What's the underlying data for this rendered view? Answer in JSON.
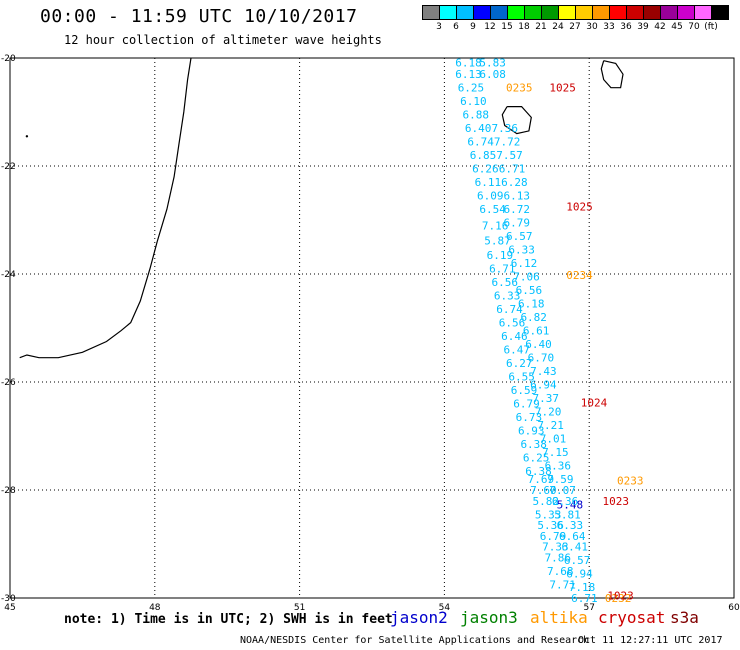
{
  "header": {
    "title": "00:00 - 11:59 UTC 10/10/2017",
    "subtitle": "12 hour collection of altimeter wave heights"
  },
  "colorbar": {
    "colors": [
      "#808080",
      "#00ffff",
      "#00bfff",
      "#0000ff",
      "#0066cc",
      "#00ff00",
      "#00cc00",
      "#009900",
      "#ffff00",
      "#ffcc00",
      "#ff9900",
      "#ff0000",
      "#cc0000",
      "#990000",
      "#990099",
      "#cc00cc",
      "#ff66ff",
      "#000000"
    ],
    "labels": [
      "3",
      "6",
      "9",
      "12",
      "15",
      "18",
      "21",
      "24",
      "27",
      "30",
      "33",
      "36",
      "39",
      "42",
      "45",
      "70"
    ],
    "unit": "(ft)"
  },
  "axes": {
    "lat_labels": [
      "-20",
      "-22",
      "-24",
      "-26",
      "-28",
      "-30"
    ],
    "lon_labels": [
      "45",
      "48",
      "51",
      "54",
      "57",
      "60"
    ],
    "lat_range": [
      -20,
      -30
    ],
    "lon_range": [
      45,
      60
    ],
    "grid": "dotted"
  },
  "coastlines": {
    "madagascar": [
      [
        48.75,
        -20.0
      ],
      [
        48.68,
        -20.4
      ],
      [
        48.6,
        -21.0
      ],
      [
        48.5,
        -21.6
      ],
      [
        48.4,
        -22.2
      ],
      [
        48.25,
        -22.8
      ],
      [
        48.05,
        -23.4
      ],
      [
        47.9,
        -23.9
      ],
      [
        47.7,
        -24.5
      ],
      [
        47.5,
        -24.9
      ],
      [
        47.3,
        -25.05
      ],
      [
        47.0,
        -25.25
      ],
      [
        46.5,
        -25.45
      ],
      [
        46.0,
        -25.55
      ],
      [
        45.6,
        -25.55
      ],
      [
        45.35,
        -25.5
      ],
      [
        45.2,
        -25.55
      ]
    ],
    "mauritius": [
      [
        57.3,
        -20.05
      ],
      [
        57.55,
        -20.1
      ],
      [
        57.7,
        -20.3
      ],
      [
        57.65,
        -20.55
      ],
      [
        57.45,
        -20.55
      ],
      [
        57.3,
        -20.4
      ],
      [
        57.25,
        -20.2
      ],
      [
        57.3,
        -20.05
      ]
    ],
    "reunion": [
      [
        55.3,
        -20.9
      ],
      [
        55.6,
        -20.9
      ],
      [
        55.8,
        -21.1
      ],
      [
        55.75,
        -21.35
      ],
      [
        55.5,
        -21.4
      ],
      [
        55.25,
        -21.25
      ],
      [
        55.2,
        -21.05
      ],
      [
        55.3,
        -20.9
      ]
    ]
  },
  "chart_data": {
    "type": "scatter",
    "title": "12 hour collection of altimeter wave heights",
    "unit": "ft",
    "series": [
      {
        "name": "jason2",
        "color": "#0000cc",
        "points": [
          {
            "lon": 56.6,
            "lat": -28.27,
            "label": "5.48"
          }
        ]
      },
      {
        "name": "jason3",
        "color": "#008000",
        "points": []
      },
      {
        "name": "altika",
        "color": "#ff9900",
        "points": [
          {
            "lon": 55.55,
            "lat": -20.55,
            "label": "0235"
          },
          {
            "lon": 56.8,
            "lat": -24.02,
            "label": "0234"
          },
          {
            "lon": 57.85,
            "lat": -27.82,
            "label": "0233"
          },
          {
            "lon": 57.6,
            "lat": -30.0,
            "label": "0232"
          }
        ]
      },
      {
        "name": "cryosat",
        "color": "#cc0000",
        "points": [
          {
            "lon": 56.45,
            "lat": -20.55,
            "label": "1025"
          },
          {
            "lon": 56.8,
            "lat": -22.75,
            "label": "1025"
          },
          {
            "lon": 57.1,
            "lat": -26.38,
            "label": "1024"
          },
          {
            "lon": 57.55,
            "lat": -28.2,
            "label": "1023"
          },
          {
            "lon": 57.65,
            "lat": -29.95,
            "label": "1023"
          }
        ]
      },
      {
        "name": "s3a",
        "color": "#800000",
        "points": []
      },
      {
        "name": "swh",
        "color": "#00bfff",
        "points": [
          {
            "lon": 54.5,
            "lat": -20.08,
            "label": "6.18"
          },
          {
            "lon": 55.0,
            "lat": -20.08,
            "label": "5.83"
          },
          {
            "lon": 54.5,
            "lat": -20.3,
            "label": "6.13"
          },
          {
            "lon": 55.0,
            "lat": -20.3,
            "label": "6.08"
          },
          {
            "lon": 54.55,
            "lat": -20.55,
            "label": "6.25"
          },
          {
            "lon": 54.6,
            "lat": -20.8,
            "label": "6.10"
          },
          {
            "lon": 54.65,
            "lat": -21.05,
            "label": "6.88"
          },
          {
            "lon": 54.7,
            "lat": -21.3,
            "label": "6.40"
          },
          {
            "lon": 55.25,
            "lat": -21.3,
            "label": "7.36"
          },
          {
            "lon": 54.75,
            "lat": -21.55,
            "label": "6.74"
          },
          {
            "lon": 55.3,
            "lat": -21.55,
            "label": "7.72"
          },
          {
            "lon": 54.8,
            "lat": -21.8,
            "label": "6.85"
          },
          {
            "lon": 55.35,
            "lat": -21.8,
            "label": "7.57"
          },
          {
            "lon": 54.85,
            "lat": -22.05,
            "label": "6.26"
          },
          {
            "lon": 55.4,
            "lat": -22.05,
            "label": "6.71"
          },
          {
            "lon": 54.9,
            "lat": -22.3,
            "label": "6.11"
          },
          {
            "lon": 55.45,
            "lat": -22.3,
            "label": "6.28"
          },
          {
            "lon": 54.95,
            "lat": -22.55,
            "label": "6.09"
          },
          {
            "lon": 55.5,
            "lat": -22.55,
            "label": "6.13"
          },
          {
            "lon": 55.0,
            "lat": -22.8,
            "label": "6.54"
          },
          {
            "lon": 55.5,
            "lat": -22.8,
            "label": "6.72"
          },
          {
            "lon": 55.5,
            "lat": -23.05,
            "label": "6.79"
          },
          {
            "lon": 55.05,
            "lat": -23.1,
            "label": "7.16"
          },
          {
            "lon": 55.55,
            "lat": -23.3,
            "label": "6.57"
          },
          {
            "lon": 55.1,
            "lat": -23.38,
            "label": "5.87"
          },
          {
            "lon": 55.6,
            "lat": -23.55,
            "label": "6.33"
          },
          {
            "lon": 55.15,
            "lat": -23.65,
            "label": "6.19"
          },
          {
            "lon": 55.65,
            "lat": -23.8,
            "label": "6.12"
          },
          {
            "lon": 55.2,
            "lat": -23.9,
            "label": "6.71"
          },
          {
            "lon": 55.7,
            "lat": -24.05,
            "label": "7.06"
          },
          {
            "lon": 55.25,
            "lat": -24.15,
            "label": "6.56"
          },
          {
            "lon": 55.75,
            "lat": -24.3,
            "label": "6.56"
          },
          {
            "lon": 55.3,
            "lat": -24.4,
            "label": "6.33"
          },
          {
            "lon": 55.8,
            "lat": -24.55,
            "label": "6.18"
          },
          {
            "lon": 55.35,
            "lat": -24.65,
            "label": "6.74"
          },
          {
            "lon": 55.85,
            "lat": -24.8,
            "label": "6.82"
          },
          {
            "lon": 55.4,
            "lat": -24.9,
            "label": "6.56"
          },
          {
            "lon": 55.9,
            "lat": -25.05,
            "label": "6.61"
          },
          {
            "lon": 55.45,
            "lat": -25.15,
            "label": "6.46"
          },
          {
            "lon": 55.95,
            "lat": -25.3,
            "label": "6.40"
          },
          {
            "lon": 55.5,
            "lat": -25.4,
            "label": "6.47"
          },
          {
            "lon": 56.0,
            "lat": -25.55,
            "label": "6.70"
          },
          {
            "lon": 55.55,
            "lat": -25.65,
            "label": "6.27"
          },
          {
            "lon": 56.05,
            "lat": -25.8,
            "label": "7.43"
          },
          {
            "lon": 55.6,
            "lat": -25.9,
            "label": "6.55"
          },
          {
            "lon": 56.05,
            "lat": -26.05,
            "label": "6.94"
          },
          {
            "lon": 55.65,
            "lat": -26.15,
            "label": "6.59"
          },
          {
            "lon": 56.1,
            "lat": -26.3,
            "label": "7.37"
          },
          {
            "lon": 55.7,
            "lat": -26.4,
            "label": "6.79"
          },
          {
            "lon": 56.15,
            "lat": -26.55,
            "label": "7.20"
          },
          {
            "lon": 55.75,
            "lat": -26.65,
            "label": "6.73"
          },
          {
            "lon": 56.2,
            "lat": -26.8,
            "label": "7.21"
          },
          {
            "lon": 55.8,
            "lat": -26.9,
            "label": "6.93"
          },
          {
            "lon": 56.25,
            "lat": -27.05,
            "label": "7.01"
          },
          {
            "lon": 55.85,
            "lat": -27.15,
            "label": "6.38"
          },
          {
            "lon": 56.3,
            "lat": -27.3,
            "label": "7.15"
          },
          {
            "lon": 55.9,
            "lat": -27.4,
            "label": "6.25"
          },
          {
            "lon": 56.35,
            "lat": -27.55,
            "label": "6.36"
          },
          {
            "lon": 55.95,
            "lat": -27.65,
            "label": "6.38"
          },
          {
            "lon": 56.4,
            "lat": -27.8,
            "label": "7.59"
          },
          {
            "lon": 56.0,
            "lat": -27.8,
            "label": "7.69"
          },
          {
            "lon": 56.05,
            "lat": -28.0,
            "label": "7.60"
          },
          {
            "lon": 56.45,
            "lat": -28.0,
            "label": "7.07"
          },
          {
            "lon": 56.1,
            "lat": -28.2,
            "label": "5.82"
          },
          {
            "lon": 56.5,
            "lat": -28.2,
            "label": "6.36"
          },
          {
            "lon": 56.15,
            "lat": -28.45,
            "label": "5.33"
          },
          {
            "lon": 56.55,
            "lat": -28.45,
            "label": "5.81"
          },
          {
            "lon": 56.2,
            "lat": -28.65,
            "label": "5.36"
          },
          {
            "lon": 56.6,
            "lat": -28.65,
            "label": "6.33"
          },
          {
            "lon": 56.25,
            "lat": -28.85,
            "label": "6.79"
          },
          {
            "lon": 56.65,
            "lat": -28.85,
            "label": "6.64"
          },
          {
            "lon": 56.3,
            "lat": -29.05,
            "label": "7.33"
          },
          {
            "lon": 56.7,
            "lat": -29.05,
            "label": "6.41"
          },
          {
            "lon": 56.35,
            "lat": -29.25,
            "label": "7.86"
          },
          {
            "lon": 56.75,
            "lat": -29.3,
            "label": "6.57"
          },
          {
            "lon": 56.4,
            "lat": -29.5,
            "label": "7.68"
          },
          {
            "lon": 56.8,
            "lat": -29.55,
            "label": "6.94"
          },
          {
            "lon": 56.45,
            "lat": -29.75,
            "label": "7.71"
          },
          {
            "lon": 56.85,
            "lat": -29.8,
            "label": "7.18"
          },
          {
            "lon": 56.9,
            "lat": -30.0,
            "label": "6.71"
          }
        ]
      }
    ]
  },
  "note": "note: 1) Time is in UTC; 2) SWH is in feet",
  "legend": [
    {
      "name": "jason2",
      "color": "#0000cc"
    },
    {
      "name": "jason3",
      "color": "#008000"
    },
    {
      "name": "altika",
      "color": "#ff9900"
    },
    {
      "name": "cryosat",
      "color": "#cc0000"
    },
    {
      "name": "s3a",
      "color": "#800000"
    }
  ],
  "footer": {
    "center": "NOAA/NESDIS Center for Satellite Applications and Research",
    "date": "Oct 11 12:27:11 UTC 2017"
  }
}
